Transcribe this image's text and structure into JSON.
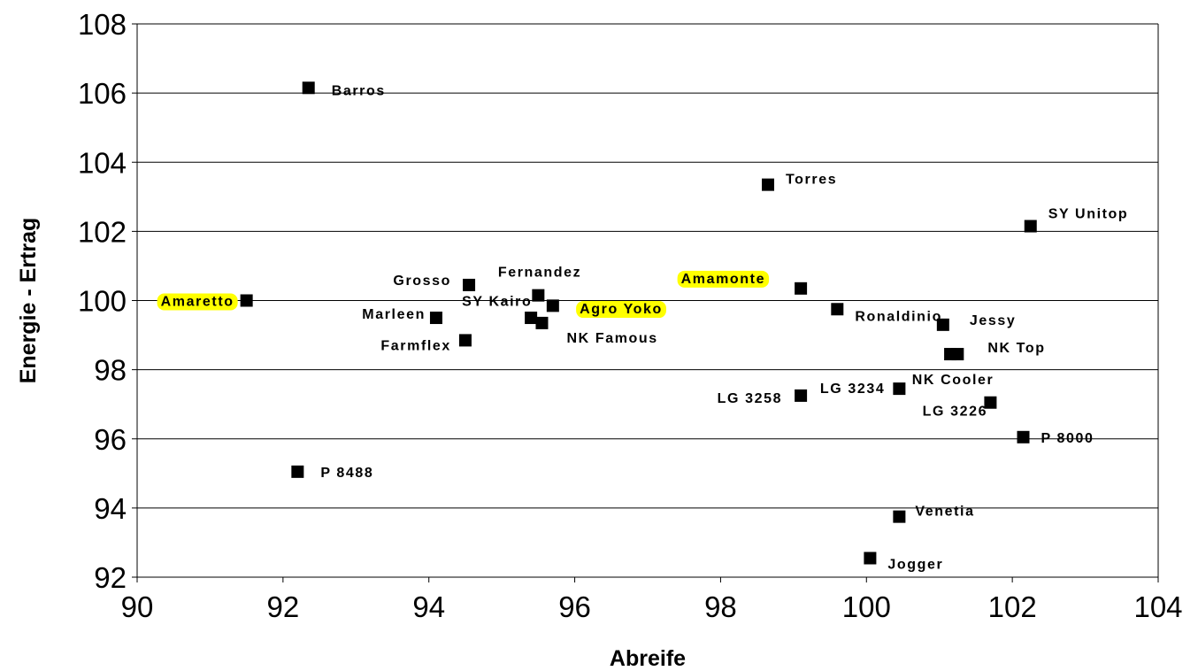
{
  "chart_data": {
    "type": "scatter",
    "xlabel": "Abreife",
    "ylabel": "Energie - Ertrag",
    "xlim": [
      90,
      104
    ],
    "ylim": [
      92,
      108
    ],
    "xticks": [
      90,
      92,
      94,
      96,
      98,
      100,
      102,
      104
    ],
    "yticks": [
      92,
      94,
      96,
      98,
      100,
      102,
      104,
      106,
      108
    ],
    "grid": "horizontal",
    "highlight_color": "#ffff00",
    "marker_color": "#000000",
    "points": [
      {
        "name": "Barros",
        "x": 92.35,
        "y": 106.15,
        "highlight": false
      },
      {
        "name": "Torres",
        "x": 98.65,
        "y": 103.35,
        "highlight": false
      },
      {
        "name": "SY Unitop",
        "x": 102.25,
        "y": 102.15,
        "highlight": false
      },
      {
        "name": "Grosso",
        "x": 94.55,
        "y": 100.45,
        "highlight": false
      },
      {
        "name": "Fernandez",
        "x": 95.7,
        "y": 99.85,
        "highlight": false
      },
      {
        "name": "Amaretto",
        "x": 91.5,
        "y": 100.0,
        "highlight": true
      },
      {
        "name": "SY Kairo",
        "x": 95.5,
        "y": 100.15,
        "highlight": false
      },
      {
        "name": "Agro Yoko",
        "x": 95.4,
        "y": 99.5,
        "highlight": true
      },
      {
        "name": "Amamonte",
        "x": 99.1,
        "y": 100.35,
        "highlight": true
      },
      {
        "name": "Marleen",
        "x": 94.1,
        "y": 99.5,
        "highlight": false
      },
      {
        "name": "NK Famous",
        "x": 95.55,
        "y": 99.35,
        "highlight": false
      },
      {
        "name": "Farmflex",
        "x": 94.5,
        "y": 98.85,
        "highlight": false
      },
      {
        "name": "Ronaldinio",
        "x": 99.6,
        "y": 99.75,
        "highlight": false
      },
      {
        "name": "Jessy",
        "x": 101.05,
        "y": 99.3,
        "highlight": false
      },
      {
        "name": "NK Top",
        "x": 101.25,
        "y": 98.45,
        "highlight": false
      },
      {
        "name": "NK Cooler",
        "x": 101.15,
        "y": 98.45,
        "highlight": false
      },
      {
        "name": "LG 3258",
        "x": 99.1,
        "y": 97.25,
        "highlight": false
      },
      {
        "name": "LG 3234",
        "x": 100.45,
        "y": 97.45,
        "highlight": false
      },
      {
        "name": "LG 3226",
        "x": 101.7,
        "y": 97.05,
        "highlight": false
      },
      {
        "name": "P 8000",
        "x": 102.15,
        "y": 96.05,
        "highlight": false
      },
      {
        "name": "P 8488",
        "x": 92.2,
        "y": 95.05,
        "highlight": false
      },
      {
        "name": "Venetia",
        "x": 100.45,
        "y": 93.75,
        "highlight": false
      },
      {
        "name": "Jogger",
        "x": 100.05,
        "y": 92.55,
        "highlight": false
      }
    ]
  }
}
